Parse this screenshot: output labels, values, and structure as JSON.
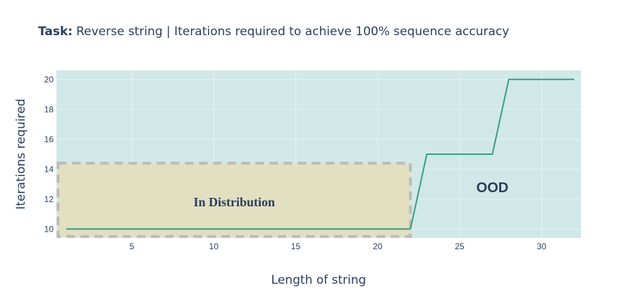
{
  "chart_data": {
    "type": "line",
    "title_prefix": "Task:",
    "title": "Reverse string | Iterations required to achieve 100% sequence accuracy",
    "xlabel": "Length of string",
    "ylabel": "Iterations required",
    "xlim": [
      0.4,
      32.4
    ],
    "ylim": [
      9.4,
      20.6
    ],
    "x_ticks": [
      5,
      10,
      15,
      20,
      25,
      30
    ],
    "y_ticks": [
      10,
      12,
      14,
      16,
      18,
      20
    ],
    "grid": true,
    "series": [
      {
        "x": [
          1,
          2,
          3,
          4,
          5,
          6,
          7,
          8,
          9,
          10,
          11,
          12,
          13,
          14,
          15,
          16,
          17,
          18,
          19,
          20,
          21,
          22,
          23,
          24,
          25,
          26,
          27,
          28,
          29,
          30,
          31,
          32
        ],
        "values": [
          10,
          10,
          10,
          10,
          10,
          10,
          10,
          10,
          10,
          10,
          10,
          10,
          10,
          10,
          10,
          10,
          10,
          10,
          10,
          10,
          10,
          10,
          15,
          15,
          15,
          15,
          15,
          20,
          20,
          20,
          20,
          20
        ]
      }
    ],
    "regions": [
      {
        "label": "In Distribution",
        "x0": 0.5,
        "x1": 22,
        "y0": 9.5,
        "y1": 14.4
      },
      {
        "label": "OOD",
        "x0": 22,
        "x1": 32.4,
        "y0": 9.4,
        "y1": 20.6
      }
    ],
    "annotations": [
      {
        "text": "In Distribution",
        "x": 11.25,
        "y": 11.8
      },
      {
        "text": "OOD",
        "x": 27,
        "y": 12.8
      }
    ],
    "colors": {
      "plot_background": "#d1e8e8",
      "grid": "#e8f3f3",
      "line": "#3a9e7e",
      "in_distribution_fill": "#e3dfc1",
      "in_distribution_border": "#bbbbbb",
      "text": "#2a3f5f"
    }
  }
}
